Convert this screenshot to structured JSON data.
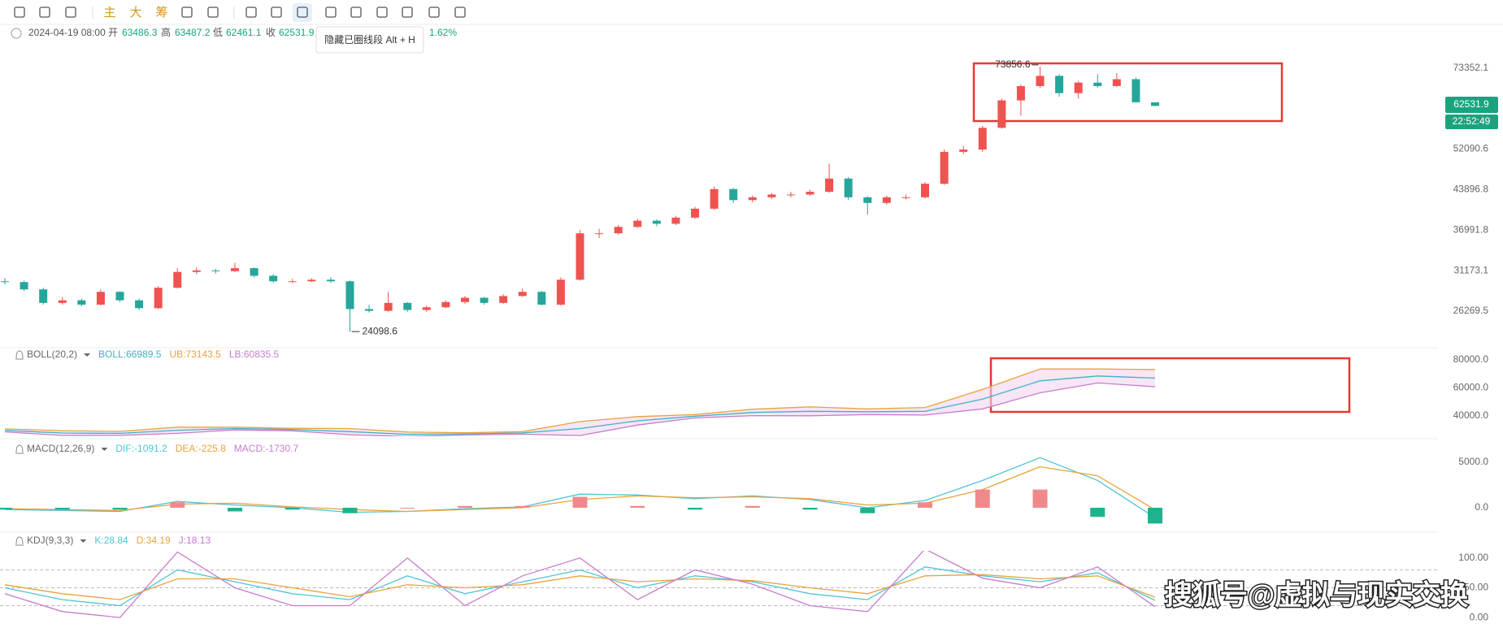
{
  "toolbar": {
    "buttons": [
      "主",
      "大",
      "筹"
    ],
    "tooltip": "隐藏已圈线段 Alt + H"
  },
  "header": {
    "datetime": "2024-04-19 08:00",
    "open_label": "开",
    "open": "63486.3",
    "high_label": "高",
    "high": "63487.2",
    "low_label": "低",
    "low": "62461.1",
    "close_label": "收",
    "close": "62531.9",
    "change": "1.62%"
  },
  "price_tag": {
    "price": "62531.9",
    "time": "22:52:49"
  },
  "watermark": "搜狐号@虚拟与现实交换",
  "chart_data": [
    {
      "type": "candlestick",
      "log_scale": true,
      "ylim": [
        22740,
        79890
      ],
      "yticks": [
        73352.1,
        52090.6,
        43896.8,
        36991.8,
        31173.1,
        26269.5
      ],
      "up_color": "#ef5350",
      "down_color": "#26a69a",
      "high_label": "73856.6",
      "low_label": "24098.6",
      "ohlc": [
        [
          29800,
          30200,
          29400,
          29700
        ],
        [
          29700,
          29900,
          28600,
          28800
        ],
        [
          28800,
          29000,
          27000,
          27200
        ],
        [
          27200,
          27900,
          27000,
          27500
        ],
        [
          27500,
          27700,
          26800,
          27000
        ],
        [
          27000,
          28800,
          26900,
          28500
        ],
        [
          28500,
          28600,
          27300,
          27500
        ],
        [
          27500,
          27700,
          26400,
          26600
        ],
        [
          26600,
          29200,
          26500,
          29000
        ],
        [
          29000,
          31500,
          28900,
          31000
        ],
        [
          31000,
          31600,
          30700,
          31200
        ],
        [
          31200,
          31400,
          30800,
          31100
        ],
        [
          31100,
          32200,
          31000,
          31500
        ],
        [
          31500,
          31600,
          30300,
          30500
        ],
        [
          30500,
          30700,
          29600,
          29800
        ],
        [
          29800,
          30100,
          29600,
          29800
        ],
        [
          29800,
          30200,
          29700,
          30000
        ],
        [
          30000,
          30300,
          29600,
          29800
        ],
        [
          29800,
          29900,
          24098.6,
          26500
        ],
        [
          26500,
          27000,
          26100,
          26300
        ],
        [
          26300,
          28500,
          26200,
          27200
        ],
        [
          27200,
          27300,
          26200,
          26400
        ],
        [
          26400,
          26900,
          26200,
          26700
        ],
        [
          26700,
          27500,
          26600,
          27300
        ],
        [
          27300,
          28000,
          27100,
          27800
        ],
        [
          27800,
          27900,
          27000,
          27200
        ],
        [
          27200,
          28200,
          27100,
          28000
        ],
        [
          28000,
          28900,
          27900,
          28500
        ],
        [
          28500,
          28600,
          26900,
          27000
        ],
        [
          27000,
          30300,
          26900,
          30000
        ],
        [
          30000,
          37000,
          29900,
          36500
        ],
        [
          36500,
          37200,
          35800,
          36500
        ],
        [
          36500,
          37800,
          36300,
          37500
        ],
        [
          37500,
          38800,
          37300,
          38500
        ],
        [
          38500,
          38700,
          37600,
          38000
        ],
        [
          38000,
          39300,
          37800,
          39000
        ],
        [
          39000,
          40800,
          38800,
          40500
        ],
        [
          40500,
          44500,
          40300,
          44000
        ],
        [
          44000,
          44200,
          41500,
          42000
        ],
        [
          42000,
          42800,
          41600,
          42500
        ],
        [
          42500,
          43300,
          42200,
          43000
        ],
        [
          43000,
          43500,
          42500,
          43000
        ],
        [
          43000,
          43900,
          42800,
          43500
        ],
        [
          43500,
          49000,
          43300,
          46000
        ],
        [
          46000,
          46300,
          42000,
          42500
        ],
        [
          42500,
          42700,
          39500,
          41500
        ],
        [
          41500,
          42800,
          41200,
          42500
        ],
        [
          42500,
          43000,
          42100,
          42500
        ],
        [
          42500,
          45300,
          42300,
          45000
        ],
        [
          45000,
          52000,
          44800,
          51500
        ],
        [
          51500,
          52800,
          51000,
          52000
        ],
        [
          52000,
          57500,
          51500,
          57000
        ],
        [
          57000,
          64500,
          56800,
          64000
        ],
        [
          64000,
          68500,
          60000,
          68000
        ],
        [
          68000,
          73856.6,
          67500,
          71000
        ],
        [
          71000,
          71500,
          65000,
          66000
        ],
        [
          66000,
          69500,
          64500,
          69000
        ],
        [
          69000,
          71500,
          67500,
          68000
        ],
        [
          68000,
          71800,
          67800,
          70000
        ],
        [
          70000,
          70500,
          63400,
          63500
        ],
        [
          63486.3,
          63487.2,
          62461.1,
          62531.9
        ]
      ]
    },
    {
      "type": "line",
      "title": "BOLL(20,2)",
      "ylim": [
        25500,
        87500
      ],
      "yticks": [
        {
          "value": 80000,
          "label": "80000.0"
        },
        {
          "value": 60000,
          "label": "60000.0"
        },
        {
          "value": 40000,
          "label": "40000.0"
        }
      ],
      "band_color": "#f3d3f0",
      "series": [
        {
          "name": "BOLL:66989.5",
          "color": "#3bb3c3",
          "values": [
            29700,
            27800,
            27600,
            29800,
            31000,
            30300,
            28800,
            26900,
            27200,
            27900,
            31000,
            36500,
            39800,
            42500,
            43300,
            43000,
            43300,
            52000,
            65000,
            68500,
            66989.5
          ]
        },
        {
          "name": "UB:73143.5",
          "color": "#e8a33d",
          "values": [
            30800,
            29500,
            29000,
            32000,
            32000,
            31200,
            31000,
            28500,
            28000,
            28800,
            36000,
            39500,
            41000,
            44800,
            46500,
            45000,
            46000,
            59000,
            73500,
            73500,
            73143.5
          ]
        },
        {
          "name": "LB:60835.5",
          "color": "#c77ccb",
          "values": [
            28600,
            26100,
            26200,
            27600,
            30000,
            29400,
            26600,
            25300,
            26400,
            27000,
            26000,
            33500,
            38600,
            40200,
            40100,
            41000,
            40600,
            45000,
            56500,
            63500,
            60835.5
          ]
        }
      ]
    },
    {
      "type": "macd",
      "title": "MACD(12,26,9)",
      "ylim": [
        -2050,
        7400
      ],
      "yticks": [
        {
          "value": 5000,
          "label": "5000.0"
        },
        {
          "value": 0,
          "label": "0.0"
        }
      ],
      "series": [
        {
          "name": "DIF:-1091.2",
          "color": "#4fc3d6",
          "values": [
            -200,
            -300,
            -400,
            700,
            300,
            0,
            -500,
            -400,
            -100,
            100,
            1500,
            1400,
            1000,
            1300,
            900,
            0,
            800,
            3000,
            5500,
            3000,
            -1091.2
          ]
        },
        {
          "name": "DEA:-225.8",
          "color": "#e8a33d",
          "values": [
            -100,
            -200,
            -300,
            400,
            500,
            100,
            -200,
            -400,
            -200,
            0,
            900,
            1300,
            1100,
            1200,
            1000,
            300,
            500,
            2000,
            4500,
            3500,
            -225.8
          ]
        },
        {
          "name": "MACD:-1730.7",
          "color": "#c77ccb",
          "bars": true,
          "pos_color": "#f08a8a",
          "neg_color": "#1fb38c",
          "values": [
            -200,
            -200,
            -200,
            600,
            -400,
            -200,
            -600,
            0,
            200,
            200,
            1200,
            200,
            -200,
            200,
            -200,
            -600,
            600,
            2000,
            2000,
            -1000,
            -1730.7
          ]
        }
      ]
    },
    {
      "type": "line",
      "title": "KDJ(9,3,3)",
      "ylim": [
        -8,
        112
      ],
      "yticks": [
        {
          "value": 100,
          "label": "100.00"
        },
        {
          "value": 50,
          "label": "50.00"
        },
        {
          "value": 0,
          "label": "0.00"
        }
      ],
      "ref_levels": [
        80,
        50,
        20
      ],
      "series": [
        {
          "name": "K:28.84",
          "color": "#4fc3d6",
          "values": [
            50,
            30,
            20,
            80,
            60,
            40,
            30,
            70,
            40,
            60,
            80,
            50,
            70,
            60,
            40,
            30,
            85,
            70,
            60,
            75,
            28.84
          ]
        },
        {
          "name": "D:34.19",
          "color": "#e8a33d",
          "values": [
            55,
            40,
            30,
            65,
            65,
            50,
            35,
            55,
            50,
            55,
            70,
            60,
            65,
            62,
            50,
            40,
            70,
            72,
            65,
            70,
            34.19
          ]
        },
        {
          "name": "J:18.13",
          "color": "#c77ccb",
          "values": [
            40,
            10,
            0,
            110,
            50,
            20,
            20,
            100,
            20,
            70,
            100,
            30,
            80,
            56,
            20,
            10,
            115,
            66,
            50,
            85,
            18.13
          ]
        }
      ]
    }
  ]
}
